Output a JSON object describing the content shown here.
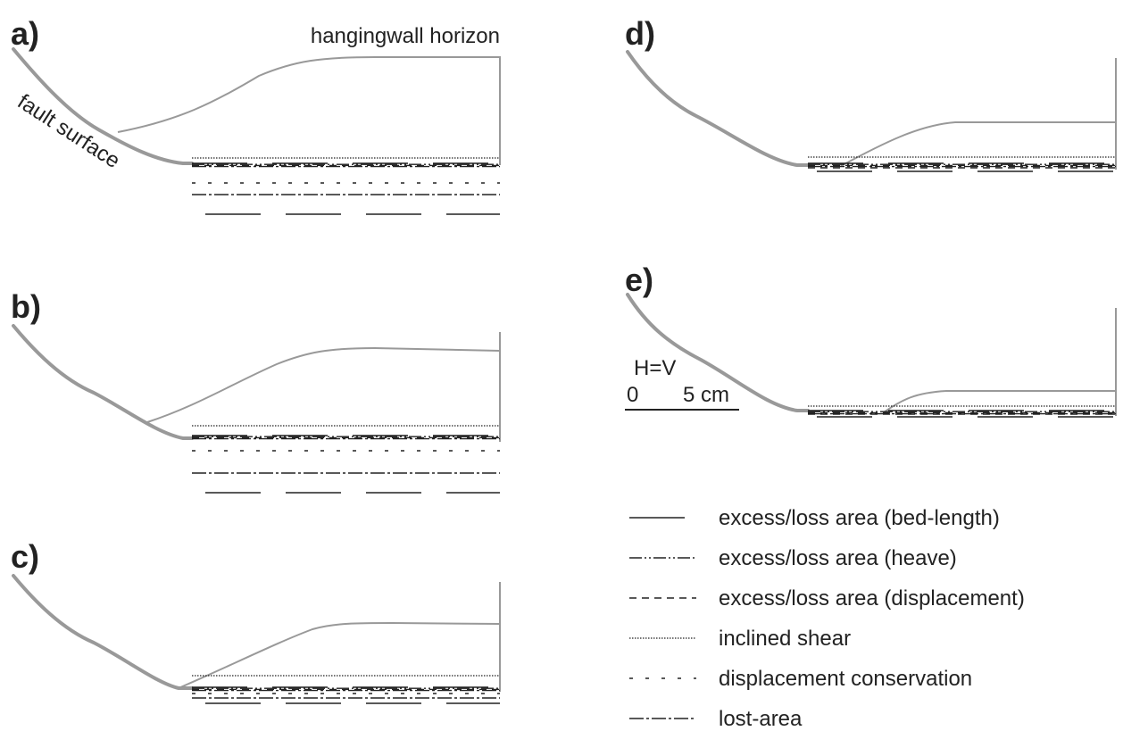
{
  "panels": [
    {
      "label": "a)"
    },
    {
      "label": "b)"
    },
    {
      "label": "c)"
    },
    {
      "label": "d)"
    },
    {
      "label": "e)"
    }
  ],
  "annotations": {
    "hangingwall": "hangingwall horizon",
    "fault": "fault surface"
  },
  "scale": {
    "ratio": "H=V",
    "zero": "0",
    "length": "5 cm"
  },
  "legend": [
    "excess/loss area (bed-length)",
    "excess/loss area (heave)",
    "excess/loss area (displacement)",
    "inclined shear",
    "displacement conservation",
    "lost-area"
  ]
}
